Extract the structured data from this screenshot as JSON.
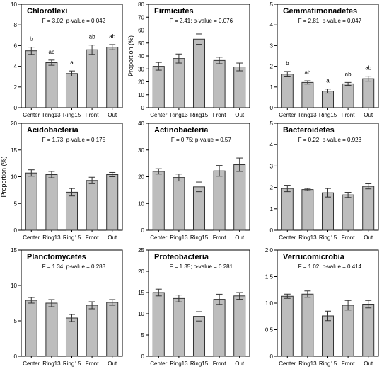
{
  "chart_data": [
    {
      "type": "bar",
      "title": "Chloroflexi",
      "stat": "F = 3.02; p-value = 0.042",
      "ylabel": "",
      "categories": [
        "Center",
        "Ring13",
        "Ring15",
        "Front",
        "Out"
      ],
      "values": [
        5.5,
        4.35,
        3.3,
        5.6,
        5.85
      ],
      "errors": [
        0.35,
        0.25,
        0.25,
        0.45,
        0.25
      ],
      "letters": [
        "b",
        "ab",
        "a",
        "ab",
        "ab"
      ],
      "ylim": [
        0,
        10
      ],
      "yticks": [
        0,
        2,
        4,
        6,
        8,
        10
      ],
      "yticklabels": [
        "0",
        "2",
        "4",
        "6",
        "8",
        "10"
      ]
    },
    {
      "type": "bar",
      "title": "Firmicutes",
      "stat": "F = 2.41; p-value = 0.076",
      "ylabel": "Proportion (%)",
      "categories": [
        "Center",
        "Ring13",
        "Ring15",
        "Front",
        "Out"
      ],
      "values": [
        32,
        38,
        53,
        36.5,
        31.5
      ],
      "errors": [
        3,
        3.5,
        4,
        2.5,
        3
      ],
      "letters": [],
      "ylim": [
        0,
        80
      ],
      "yticks": [
        0,
        10,
        20,
        30,
        40,
        50,
        60,
        70,
        80
      ],
      "yticklabels": [
        "0",
        "10",
        "20",
        "30",
        "40",
        "50",
        "60",
        "70",
        "80"
      ]
    },
    {
      "type": "bar",
      "title": "Gemmatimonadetes",
      "stat": "F = 2.81; p-value = 0.047",
      "ylabel": "",
      "categories": [
        "Center",
        "Ring13",
        "Ring15",
        "Front",
        "Out"
      ],
      "values": [
        1.62,
        1.22,
        0.8,
        1.15,
        1.4
      ],
      "errors": [
        0.13,
        0.08,
        0.1,
        0.07,
        0.12
      ],
      "letters": [
        "b",
        "ab",
        "a",
        "ab",
        "ab"
      ],
      "ylim": [
        0,
        5
      ],
      "yticks": [
        0,
        1,
        2,
        3,
        4,
        5
      ],
      "yticklabels": [
        "0",
        "1",
        "2",
        "3",
        "4",
        "5"
      ]
    },
    {
      "type": "bar",
      "title": "Acidobacteria",
      "stat": "F = 1.73; p-value = 0.175",
      "ylabel": "Proportion (%)",
      "categories": [
        "Center",
        "Ring13",
        "Ring15",
        "Front",
        "Out"
      ],
      "values": [
        10.7,
        10.4,
        7.1,
        9.3,
        10.4
      ],
      "errors": [
        0.6,
        0.6,
        0.7,
        0.6,
        0.4
      ],
      "letters": [],
      "ylim": [
        0,
        20
      ],
      "yticks": [
        0,
        5,
        10,
        15,
        20
      ],
      "yticklabels": [
        "0",
        "5",
        "10",
        "15",
        "20"
      ]
    },
    {
      "type": "bar",
      "title": "Actinobacteria",
      "stat": "F = 0.75; p-value = 0.57",
      "ylabel": "",
      "categories": [
        "Center",
        "Ring13",
        "Ring15",
        "Front",
        "Out"
      ],
      "values": [
        22,
        19.7,
        16.2,
        22.2,
        24.5
      ],
      "errors": [
        1,
        1.3,
        1.8,
        2,
        2.5
      ],
      "letters": [],
      "ylim": [
        0,
        40
      ],
      "yticks": [
        0,
        10,
        20,
        30,
        40
      ],
      "yticklabels": [
        "0",
        "10",
        "20",
        "30",
        "40"
      ]
    },
    {
      "type": "bar",
      "title": "Bacteroidetes",
      "stat": "F = 0.22; p-value = 0.923",
      "ylabel": "",
      "categories": [
        "Center",
        "Ring13",
        "Ring15",
        "Front",
        "Out"
      ],
      "values": [
        1.95,
        1.9,
        1.75,
        1.65,
        2.05
      ],
      "errors": [
        0.15,
        0.05,
        0.2,
        0.12,
        0.12
      ],
      "letters": [],
      "ylim": [
        0,
        5
      ],
      "yticks": [
        0,
        1,
        2,
        3,
        4,
        5
      ],
      "yticklabels": [
        "0",
        "1",
        "2",
        "3",
        "4",
        "5"
      ]
    },
    {
      "type": "bar",
      "title": "Planctomycetes",
      "stat": "F = 1.34; p-value = 0.283",
      "ylabel": "",
      "categories": [
        "Center",
        "Ring13",
        "Ring15",
        "Front",
        "Out"
      ],
      "values": [
        7.9,
        7.5,
        5.4,
        7.2,
        7.6
      ],
      "errors": [
        0.4,
        0.5,
        0.5,
        0.5,
        0.4
      ],
      "letters": [],
      "ylim": [
        0,
        15
      ],
      "yticks": [
        0,
        5,
        10,
        15
      ],
      "yticklabels": [
        "0",
        "5",
        "10",
        "15"
      ]
    },
    {
      "type": "bar",
      "title": "Proteobacteria",
      "stat": "F = 1.35; p-value = 0.281",
      "ylabel": "",
      "categories": [
        "Center",
        "Ring13",
        "Ring15",
        "Front",
        "Out"
      ],
      "values": [
        15,
        13.6,
        9.4,
        13.4,
        14.2
      ],
      "errors": [
        0.8,
        0.8,
        1.1,
        1.2,
        0.8
      ],
      "letters": [],
      "ylim": [
        0,
        25
      ],
      "yticks": [
        0,
        5,
        10,
        15,
        20,
        25
      ],
      "yticklabels": [
        "0",
        "5",
        "10",
        "15",
        "20",
        "25"
      ]
    },
    {
      "type": "bar",
      "title": "Verrucomicrobia",
      "stat": "F = 1.02; p-value = 0.414",
      "ylabel": "",
      "categories": [
        "Center",
        "Ring13",
        "Ring15",
        "Front",
        "Out"
      ],
      "values": [
        1.13,
        1.17,
        0.76,
        0.96,
        0.98
      ],
      "errors": [
        0.04,
        0.06,
        0.09,
        0.09,
        0.07
      ],
      "letters": [],
      "ylim": [
        0,
        2
      ],
      "yticks": [
        0,
        0.5,
        1,
        1.5,
        2
      ],
      "yticklabels": [
        "0",
        "0.5",
        "1.0",
        "1.5",
        "2.0"
      ]
    }
  ],
  "colors": {
    "bar_fill": "#bdbdbd",
    "bar_stroke": "#333333",
    "axis": "#000000",
    "text": "#000000"
  }
}
